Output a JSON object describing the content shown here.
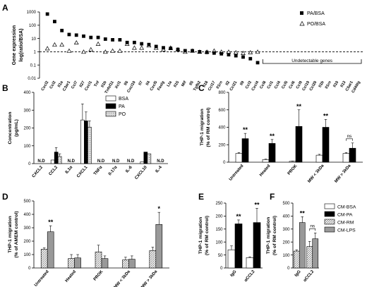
{
  "chart_data": [
    {
      "panel": "A",
      "type": "scatter",
      "ylabel_line1": "Gene expression",
      "ylabel_line2": "log(ratio/BSA)",
      "ylim": [
        0.01,
        1000
      ],
      "log_scale": true,
      "yticks": [
        "0.01",
        "0.1",
        "1",
        "10",
        "100",
        "1000"
      ],
      "reference_line": 1,
      "series": [
        {
          "name": "PA/BSA",
          "marker": "filled-square"
        },
        {
          "name": "PO/BSA",
          "marker": "open-triangle"
        }
      ],
      "genes": [
        {
          "name": "Cxcl2",
          "pa": 700,
          "po": 1.8
        },
        {
          "name": "Ccl2",
          "pa": 190,
          "po": 3.5
        },
        {
          "name": "Il1a",
          "pa": 40,
          "po": 3.5
        },
        {
          "name": "C3ar1",
          "pa": 20,
          "po": 1.2
        },
        {
          "name": "Ccl7",
          "pa": 18,
          "po": 5
        },
        {
          "name": "Il27",
          "pa": 15,
          "po": 1
        },
        {
          "name": "Cxcl1",
          "pa": 12,
          "po": 1.5
        },
        {
          "name": "Tnf",
          "pa": 12,
          "po": 4
        },
        {
          "name": "Il1b",
          "pa": 9,
          "po": 1
        },
        {
          "name": "Tnfsf11",
          "pa": 8,
          "po": 1.2
        },
        {
          "name": "Xcl1",
          "pa": 8,
          "po": 1.2
        },
        {
          "name": "Il6",
          "pa": 5,
          "po": 4
        },
        {
          "name": "Cxcl10",
          "pa": 5,
          "po": 2
        },
        {
          "name": "Il7",
          "pa": 4,
          "po": 2
        },
        {
          "name": "Il4",
          "pa": 3.5,
          "po": 3
        },
        {
          "name": "Cxcl5",
          "pa": 2.5,
          "po": 2
        },
        {
          "name": "Faslg",
          "pa": 2,
          "po": 1.5
        },
        {
          "name": "Lta",
          "pa": 1.8,
          "po": 2
        },
        {
          "name": "Il15",
          "pa": 1.5,
          "po": 1.5
        },
        {
          "name": "Mif",
          "pa": 1.2,
          "po": 1
        },
        {
          "name": "Il5",
          "pa": 1.2,
          "po": 1.2
        },
        {
          "name": "Tgfb2",
          "pa": 1,
          "po": 1
        },
        {
          "name": "Il18",
          "pa": 0.9,
          "po": 1
        },
        {
          "name": "Ccl17",
          "pa": 0.8,
          "po": 1.2
        },
        {
          "name": "Il1rn",
          "pa": 0.7,
          "po": 1
        },
        {
          "name": "Il2",
          "pa": 0.6,
          "po": 1
        },
        {
          "name": "Ccl21",
          "pa": 0.5,
          "po": 0.9
        },
        {
          "name": "Il9",
          "pa": 0.4,
          "po": 0.8
        },
        {
          "name": "Ccl3",
          "pa": 0.3,
          "po": 0.9
        },
        {
          "name": "Cxcl4",
          "pa": 0.15,
          "po": 1
        }
      ],
      "undetectable_label": "Undetectable genes",
      "undetectable_genes": [
        "Ccl8",
        "Ccl1",
        "Ccl4",
        "Ccl5",
        "Ccl6",
        "Ccl9",
        "Ccl19",
        "Ccl20",
        "Il1b",
        "Il1rn",
        "Il10",
        "Il13",
        "C5ar1",
        "Cd40lg"
      ]
    },
    {
      "panel": "B",
      "type": "bar",
      "ylabel_line1": "Concentration",
      "ylabel_line2": "(pg/mL)",
      "ylim": [
        0,
        400
      ],
      "yticks": [
        "0",
        "100",
        "200",
        "300",
        "400"
      ],
      "categories": [
        "CXCL2",
        "CCL2",
        "IL1α",
        "CXCL1",
        "TNFα",
        "Il-17α",
        "IL-6",
        "CXCL10",
        "IL-4"
      ],
      "nd_label": "N.D",
      "series": [
        {
          "name": "BSA",
          "values": [
            null,
            20,
            null,
            245,
            null,
            null,
            null,
            10,
            null
          ],
          "errors": [
            0,
            0,
            0,
            90,
            0,
            0,
            0,
            0,
            0
          ]
        },
        {
          "name": "PA",
          "values": [
            null,
            65,
            null,
            240,
            null,
            null,
            null,
            65,
            null
          ],
          "errors": [
            0,
            25,
            0,
            50,
            0,
            0,
            0,
            0,
            0
          ]
        },
        {
          "name": "PO",
          "values": [
            null,
            40,
            null,
            205,
            null,
            null,
            null,
            55,
            null
          ],
          "errors": [
            0,
            15,
            0,
            35,
            0,
            0,
            0,
            0,
            0
          ]
        }
      ]
    },
    {
      "panel": "C",
      "type": "bar",
      "ylabel_line1": "THP-1 migration",
      "ylabel_line2": "(% of RM control)",
      "ylim": [
        0,
        800
      ],
      "yticks": [
        "0",
        "200",
        "400",
        "600",
        "800"
      ],
      "categories": [
        "Untreated",
        "Heated",
        "PROK",
        "MW < 3kDa",
        "MW > 3kDa"
      ],
      "series": [
        {
          "name": "CM-RM",
          "values": [
            100,
            30,
            10,
            80,
            100
          ],
          "errors": [
            10,
            5,
            3,
            10,
            10
          ]
        },
        {
          "name": "CM-PA",
          "values": [
            270,
            215,
            410,
            400,
            160
          ],
          "errors": [
            60,
            45,
            190,
            90,
            60
          ]
        }
      ],
      "significance": [
        "**",
        "**",
        "**",
        "**",
        "ns"
      ]
    },
    {
      "panel": "D",
      "type": "bar",
      "ylabel_line1": "THP-1 migration",
      "ylabel_line2": "(% of AMEM control)",
      "ylim": [
        0,
        500
      ],
      "yticks": [
        "0",
        "100",
        "200",
        "300",
        "400",
        "500"
      ],
      "categories": [
        "Untreated",
        "Heated",
        "PROK",
        "MW < 3kDa",
        "MW > 3kDa"
      ],
      "series": [
        {
          "name": "CM-RM",
          "values": [
            140,
            70,
            120,
            60,
            130
          ],
          "errors": [
            10,
            30,
            50,
            20,
            25
          ]
        },
        {
          "name": "CM-LPS",
          "values": [
            270,
            75,
            70,
            65,
            325
          ],
          "errors": [
            45,
            25,
            20,
            25,
            90
          ]
        }
      ],
      "significance": [
        "**",
        "",
        "",
        "",
        "*"
      ]
    },
    {
      "panel": "E",
      "type": "bar",
      "ylabel_line1": "THP-1 migration",
      "ylabel_line2": "(% of RM control)",
      "ylim": [
        0,
        250
      ],
      "yticks": [
        "0",
        "50",
        "100",
        "150",
        "200",
        "250"
      ],
      "categories": [
        "IgG",
        "αCCL2"
      ],
      "series": [
        {
          "name": "CM-RM",
          "values": [
            70,
            40
          ],
          "errors": [
            15,
            3
          ]
        },
        {
          "name": "CM-PA",
          "values": [
            170,
            175
          ],
          "errors": [
            15,
            55
          ]
        }
      ],
      "significance": [
        "**",
        "**"
      ]
    },
    {
      "panel": "F",
      "type": "bar",
      "ylabel_line1": "THP-1 migration",
      "ylabel_line2": "(% of RM control)",
      "ylim": [
        0,
        500
      ],
      "yticks": [
        "0",
        "100",
        "200",
        "300",
        "400",
        "500"
      ],
      "categories": [
        "IgG",
        "αCCL2"
      ],
      "series": [
        {
          "name": "CM-RM",
          "values": [
            130,
            165
          ],
          "errors": [
            10,
            40
          ]
        },
        {
          "name": "CM-PA",
          "values": [
            350,
            225
          ],
          "errors": [
            45,
            45
          ]
        }
      ],
      "significance": [
        "**",
        "ns"
      ]
    }
  ],
  "legend_EF": [
    {
      "name": "CM-BSA",
      "color": "#ffffff"
    },
    {
      "name": "CM-PA",
      "color": "#000000"
    },
    {
      "name": "CM-RM",
      "color": "#ffffff"
    },
    {
      "name": "CM-LPS",
      "color": "#999999"
    }
  ]
}
